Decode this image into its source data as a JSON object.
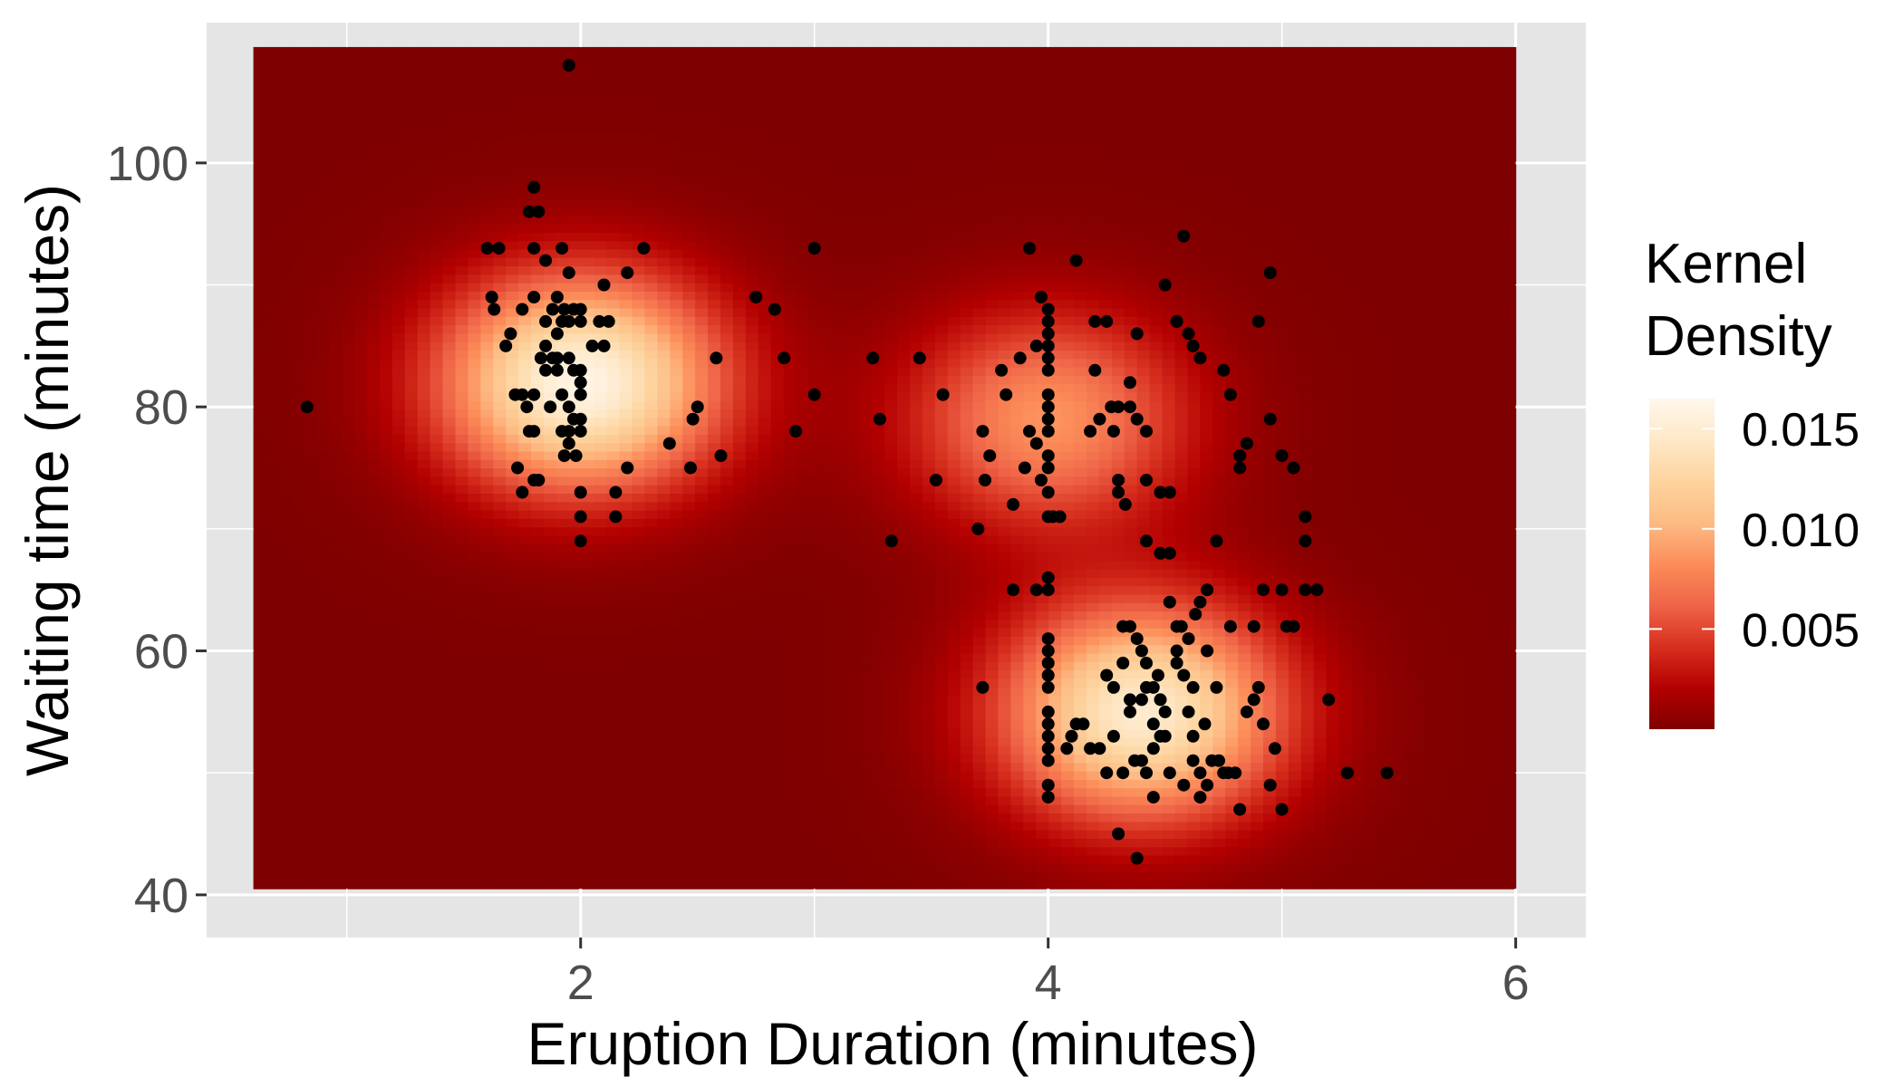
{
  "chart_data": {
    "type": "heatmap",
    "overlay": "scatter",
    "title": "",
    "xlabel": "Eruption Duration (minutes)",
    "ylabel": "Waiting time (minutes)",
    "xlim": [
      0.4,
      6.3
    ],
    "ylim": [
      36.5,
      111.5
    ],
    "x_ticks": [
      2,
      4,
      6
    ],
    "x_tick_labels": [
      "2",
      "4",
      "6"
    ],
    "y_ticks": [
      40,
      60,
      80,
      100
    ],
    "y_tick_labels": [
      "40",
      "60",
      "80",
      "100"
    ],
    "x_grid_minor": [
      1,
      3,
      5
    ],
    "y_grid_minor": [
      50,
      70,
      90
    ],
    "grid": true,
    "heatmap_extent": {
      "x": [
        0.6,
        6.0
      ],
      "y": [
        40.5,
        109.5
      ]
    },
    "density_modes": [
      {
        "x": 2.0,
        "y": 82,
        "peak": 0.016
      },
      {
        "x": 4.0,
        "y": 79,
        "peak": 0.0085
      },
      {
        "x": 4.4,
        "y": 55,
        "peak": 0.0148
      }
    ],
    "legend": {
      "title_lines": [
        "Kernel",
        "Density"
      ],
      "placement": "right",
      "breaks": [
        0.015,
        0.01,
        0.005
      ],
      "break_labels": [
        "0.015",
        "0.010",
        "0.005"
      ],
      "range": [
        0.0,
        0.0165
      ]
    },
    "color_stops": [
      "#7f0000",
      "#b30000",
      "#d7301f",
      "#ef6548",
      "#fc8d59",
      "#fdbb84",
      "#fdd49e",
      "#fee8c8",
      "#fff7ec"
    ],
    "panel_background": "#e5e5e5",
    "grid_color": "#ffffff",
    "points": [
      [
        0.83,
        80
      ],
      [
        1.95,
        108
      ],
      [
        1.6,
        93
      ],
      [
        1.65,
        93
      ],
      [
        1.62,
        89
      ],
      [
        1.63,
        88
      ],
      [
        1.75,
        88
      ],
      [
        1.7,
        86
      ],
      [
        1.68,
        85
      ],
      [
        1.72,
        81
      ],
      [
        1.75,
        81
      ],
      [
        1.77,
        80
      ],
      [
        1.78,
        78
      ],
      [
        1.8,
        78
      ],
      [
        1.73,
        75
      ],
      [
        1.75,
        73
      ],
      [
        1.8,
        74
      ],
      [
        1.82,
        74
      ],
      [
        1.8,
        98
      ],
      [
        1.78,
        96
      ],
      [
        1.82,
        96
      ],
      [
        1.8,
        93
      ],
      [
        1.85,
        92
      ],
      [
        1.92,
        93
      ],
      [
        1.95,
        91
      ],
      [
        1.8,
        89
      ],
      [
        1.9,
        89
      ],
      [
        1.88,
        88
      ],
      [
        1.93,
        88
      ],
      [
        1.97,
        88
      ],
      [
        2.0,
        88
      ],
      [
        1.85,
        87
      ],
      [
        1.92,
        87
      ],
      [
        1.95,
        87
      ],
      [
        2.0,
        87
      ],
      [
        1.85,
        85
      ],
      [
        1.9,
        86
      ],
      [
        1.83,
        84
      ],
      [
        1.88,
        84
      ],
      [
        1.9,
        84
      ],
      [
        1.95,
        84
      ],
      [
        1.97,
        83
      ],
      [
        2.0,
        83
      ],
      [
        1.85,
        83
      ],
      [
        1.9,
        83
      ],
      [
        2.0,
        82
      ],
      [
        1.8,
        81
      ],
      [
        1.87,
        80
      ],
      [
        1.92,
        81
      ],
      [
        1.95,
        80
      ],
      [
        2.0,
        81
      ],
      [
        1.97,
        79
      ],
      [
        2.0,
        79
      ],
      [
        1.92,
        78
      ],
      [
        1.95,
        78
      ],
      [
        2.0,
        78
      ],
      [
        1.95,
        77
      ],
      [
        1.98,
        76
      ],
      [
        1.93,
        76
      ],
      [
        2.0,
        73
      ],
      [
        2.0,
        71
      ],
      [
        2.0,
        69
      ],
      [
        2.05,
        85
      ],
      [
        2.08,
        87
      ],
      [
        2.12,
        87
      ],
      [
        2.1,
        85
      ],
      [
        2.1,
        90
      ],
      [
        2.2,
        91
      ],
      [
        2.27,
        93
      ],
      [
        2.15,
        73
      ],
      [
        2.15,
        71
      ],
      [
        2.2,
        75
      ],
      [
        2.38,
        77
      ],
      [
        2.47,
        75
      ],
      [
        2.48,
        79
      ],
      [
        2.5,
        80
      ],
      [
        2.58,
        84
      ],
      [
        2.6,
        76
      ],
      [
        2.75,
        89
      ],
      [
        2.83,
        88
      ],
      [
        2.87,
        84
      ],
      [
        2.92,
        78
      ],
      [
        3.0,
        93
      ],
      [
        3.0,
        81
      ],
      [
        3.25,
        84
      ],
      [
        3.28,
        79
      ],
      [
        3.33,
        69
      ],
      [
        3.45,
        84
      ],
      [
        3.52,
        74
      ],
      [
        3.55,
        81
      ],
      [
        3.7,
        70
      ],
      [
        3.72,
        78
      ],
      [
        3.73,
        74
      ],
      [
        3.75,
        76
      ],
      [
        3.8,
        83
      ],
      [
        3.82,
        81
      ],
      [
        3.85,
        72
      ],
      [
        3.88,
        84
      ],
      [
        3.9,
        75
      ],
      [
        3.92,
        78
      ],
      [
        3.92,
        93
      ],
      [
        3.95,
        77
      ],
      [
        3.95,
        85
      ],
      [
        3.97,
        89
      ],
      [
        3.97,
        74
      ],
      [
        4.0,
        88
      ],
      [
        4.0,
        87
      ],
      [
        4.0,
        86
      ],
      [
        4.0,
        85
      ],
      [
        4.0,
        84
      ],
      [
        4.0,
        83
      ],
      [
        4.0,
        81
      ],
      [
        4.0,
        80
      ],
      [
        4.0,
        79
      ],
      [
        4.0,
        78
      ],
      [
        4.0,
        76
      ],
      [
        4.0,
        75
      ],
      [
        4.0,
        73
      ],
      [
        4.0,
        71
      ],
      [
        4.02,
        71
      ],
      [
        4.05,
        71
      ],
      [
        4.12,
        92
      ],
      [
        4.18,
        78
      ],
      [
        4.2,
        87
      ],
      [
        4.2,
        83
      ],
      [
        4.22,
        79
      ],
      [
        4.25,
        87
      ],
      [
        4.27,
        80
      ],
      [
        4.28,
        78
      ],
      [
        4.3,
        80
      ],
      [
        4.3,
        74
      ],
      [
        4.3,
        73
      ],
      [
        4.33,
        72
      ],
      [
        4.35,
        82
      ],
      [
        4.35,
        80
      ],
      [
        4.38,
        79
      ],
      [
        4.38,
        86
      ],
      [
        4.42,
        78
      ],
      [
        4.42,
        74
      ],
      [
        4.48,
        73
      ],
      [
        4.52,
        73
      ],
      [
        4.55,
        87
      ],
      [
        4.5,
        90
      ],
      [
        4.55,
        87
      ],
      [
        4.6,
        86
      ],
      [
        4.58,
        94
      ],
      [
        4.62,
        85
      ],
      [
        4.65,
        84
      ],
      [
        4.75,
        83
      ],
      [
        4.78,
        81
      ],
      [
        4.82,
        75
      ],
      [
        4.82,
        76
      ],
      [
        4.85,
        77
      ],
      [
        4.9,
        87
      ],
      [
        4.95,
        91
      ],
      [
        4.95,
        79
      ],
      [
        5.0,
        76
      ],
      [
        5.05,
        75
      ],
      [
        5.1,
        71
      ],
      [
        5.1,
        69
      ],
      [
        3.72,
        57
      ],
      [
        3.85,
        65
      ],
      [
        3.95,
        65
      ],
      [
        4.0,
        66
      ],
      [
        4.0,
        65
      ],
      [
        4.0,
        61
      ],
      [
        4.0,
        60
      ],
      [
        4.0,
        59
      ],
      [
        4.0,
        58
      ],
      [
        4.0,
        57
      ],
      [
        4.0,
        55
      ],
      [
        4.0,
        54
      ],
      [
        4.0,
        53
      ],
      [
        4.0,
        52
      ],
      [
        4.0,
        51
      ],
      [
        4.0,
        49
      ],
      [
        4.0,
        48
      ],
      [
        4.08,
        52
      ],
      [
        4.1,
        53
      ],
      [
        4.12,
        54
      ],
      [
        4.15,
        54
      ],
      [
        4.18,
        52
      ],
      [
        4.22,
        52
      ],
      [
        4.25,
        50
      ],
      [
        4.28,
        57
      ],
      [
        4.32,
        50
      ],
      [
        4.35,
        56
      ],
      [
        4.37,
        51
      ],
      [
        4.4,
        51
      ],
      [
        4.42,
        50
      ],
      [
        4.45,
        48
      ],
      [
        4.45,
        54
      ],
      [
        4.47,
        58
      ],
      [
        4.32,
        62
      ],
      [
        4.35,
        62
      ],
      [
        4.38,
        61
      ],
      [
        4.4,
        60
      ],
      [
        4.42,
        59
      ],
      [
        4.45,
        57
      ],
      [
        4.48,
        56
      ],
      [
        4.5,
        55
      ],
      [
        4.5,
        53
      ],
      [
        4.52,
        64
      ],
      [
        4.55,
        60
      ],
      [
        4.57,
        62
      ],
      [
        4.58,
        58
      ],
      [
        4.6,
        55
      ],
      [
        4.62,
        53
      ],
      [
        4.65,
        50
      ],
      [
        4.65,
        48
      ],
      [
        4.68,
        49
      ],
      [
        4.42,
        69
      ],
      [
        4.48,
        68
      ],
      [
        4.52,
        68
      ],
      [
        4.55,
        62
      ],
      [
        4.6,
        61
      ],
      [
        4.63,
        63
      ],
      [
        4.65,
        64
      ],
      [
        4.68,
        65
      ],
      [
        4.7,
        51
      ],
      [
        4.73,
        51
      ],
      [
        4.75,
        50
      ],
      [
        4.77,
        50
      ],
      [
        4.8,
        50
      ],
      [
        4.82,
        47
      ],
      [
        4.85,
        55
      ],
      [
        4.88,
        56
      ],
      [
        4.9,
        57
      ],
      [
        4.92,
        54
      ],
      [
        4.95,
        49
      ],
      [
        4.97,
        52
      ],
      [
        5.0,
        47
      ],
      [
        5.02,
        62
      ],
      [
        5.05,
        62
      ],
      [
        5.1,
        65
      ],
      [
        5.15,
        65
      ],
      [
        5.2,
        56
      ],
      [
        5.28,
        50
      ],
      [
        5.45,
        50
      ],
      [
        4.88,
        62
      ],
      [
        4.92,
        65
      ],
      [
        5.0,
        65
      ],
      [
        4.78,
        62
      ],
      [
        4.72,
        57
      ],
      [
        4.68,
        60
      ],
      [
        4.72,
        69
      ],
      [
        4.25,
        58
      ],
      [
        4.3,
        45
      ],
      [
        4.38,
        43
      ],
      [
        4.32,
        59
      ],
      [
        4.55,
        59
      ],
      [
        4.4,
        56
      ],
      [
        4.45,
        52
      ],
      [
        4.52,
        50
      ],
      [
        4.58,
        49
      ],
      [
        4.62,
        51
      ],
      [
        4.67,
        54
      ],
      [
        4.28,
        53
      ],
      [
        4.35,
        55
      ],
      [
        4.42,
        57
      ],
      [
        4.48,
        53
      ],
      [
        4.62,
        57
      ]
    ]
  }
}
